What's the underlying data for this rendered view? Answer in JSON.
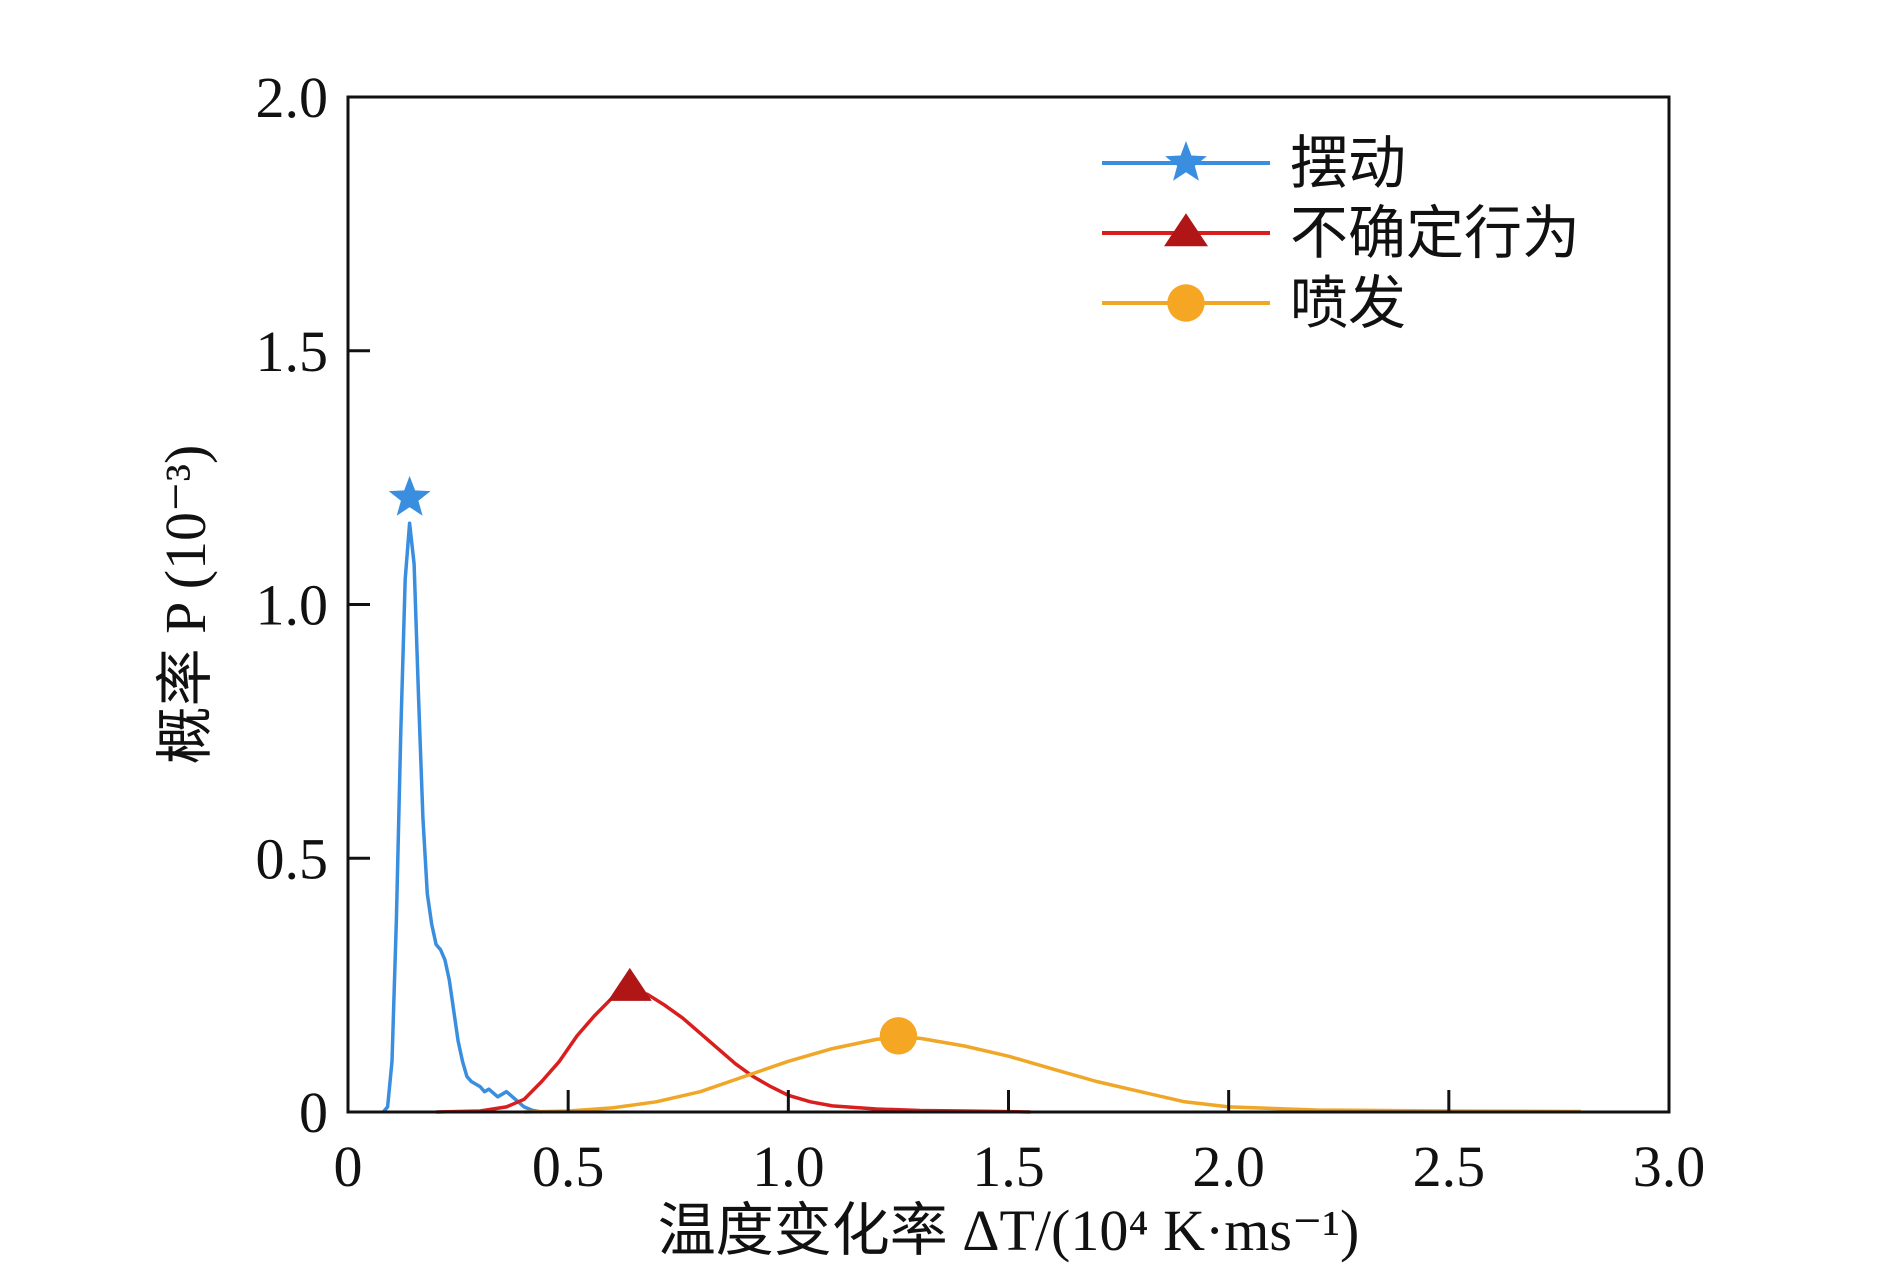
{
  "chart_data": {
    "type": "line",
    "title": "",
    "xlabel": "温度变化率 ΔT/(10⁴ K·ms⁻¹)",
    "ylabel": "概率 P (10⁻³)",
    "xlim": [
      0,
      3.0
    ],
    "ylim": [
      0,
      2.0
    ],
    "xticks": [
      "0",
      "0.5",
      "1.0",
      "1.5",
      "2.0",
      "2.5",
      "3.0"
    ],
    "yticks": [
      "0",
      "0.5",
      "1.0",
      "1.5",
      "2.0"
    ],
    "legend_position": "top-right",
    "series": [
      {
        "name": "摆动",
        "color": "#3a8ee0",
        "marker": "star",
        "peak": [
          0.14,
          1.21
        ],
        "points": [
          [
            0.08,
            0
          ],
          [
            0.09,
            0.01
          ],
          [
            0.1,
            0.1
          ],
          [
            0.11,
            0.38
          ],
          [
            0.12,
            0.75
          ],
          [
            0.13,
            1.05
          ],
          [
            0.14,
            1.16
          ],
          [
            0.15,
            1.08
          ],
          [
            0.16,
            0.82
          ],
          [
            0.17,
            0.58
          ],
          [
            0.18,
            0.43
          ],
          [
            0.19,
            0.37
          ],
          [
            0.2,
            0.33
          ],
          [
            0.21,
            0.32
          ],
          [
            0.22,
            0.3
          ],
          [
            0.23,
            0.26
          ],
          [
            0.24,
            0.2
          ],
          [
            0.25,
            0.14
          ],
          [
            0.26,
            0.1
          ],
          [
            0.27,
            0.07
          ],
          [
            0.28,
            0.06
          ],
          [
            0.3,
            0.05
          ],
          [
            0.31,
            0.04
          ],
          [
            0.32,
            0.045
          ],
          [
            0.34,
            0.03
          ],
          [
            0.36,
            0.04
          ],
          [
            0.38,
            0.025
          ],
          [
            0.4,
            0.01
          ],
          [
            0.42,
            0.003
          ],
          [
            0.44,
            0
          ]
        ]
      },
      {
        "name": "不确定行为",
        "color": "#d91e1e",
        "marker": "triangle",
        "peak": [
          0.64,
          0.245
        ],
        "points": [
          [
            0.2,
            0
          ],
          [
            0.3,
            0.002
          ],
          [
            0.36,
            0.01
          ],
          [
            0.4,
            0.025
          ],
          [
            0.44,
            0.06
          ],
          [
            0.48,
            0.1
          ],
          [
            0.52,
            0.15
          ],
          [
            0.56,
            0.19
          ],
          [
            0.6,
            0.225
          ],
          [
            0.64,
            0.24
          ],
          [
            0.68,
            0.232
          ],
          [
            0.72,
            0.21
          ],
          [
            0.76,
            0.185
          ],
          [
            0.8,
            0.155
          ],
          [
            0.84,
            0.125
          ],
          [
            0.88,
            0.095
          ],
          [
            0.92,
            0.07
          ],
          [
            0.96,
            0.05
          ],
          [
            1.0,
            0.033
          ],
          [
            1.05,
            0.02
          ],
          [
            1.1,
            0.012
          ],
          [
            1.2,
            0.006
          ],
          [
            1.3,
            0.003
          ],
          [
            1.4,
            0.002
          ],
          [
            1.55,
            0
          ]
        ]
      },
      {
        "name": "喷发",
        "color": "#f0a626",
        "marker": "circle",
        "peak": [
          1.25,
          0.15
        ],
        "points": [
          [
            0.4,
            0
          ],
          [
            0.5,
            0.002
          ],
          [
            0.6,
            0.008
          ],
          [
            0.7,
            0.02
          ],
          [
            0.8,
            0.04
          ],
          [
            0.9,
            0.07
          ],
          [
            1.0,
            0.1
          ],
          [
            1.1,
            0.125
          ],
          [
            1.2,
            0.143
          ],
          [
            1.25,
            0.148
          ],
          [
            1.3,
            0.145
          ],
          [
            1.4,
            0.13
          ],
          [
            1.5,
            0.11
          ],
          [
            1.6,
            0.085
          ],
          [
            1.7,
            0.06
          ],
          [
            1.8,
            0.04
          ],
          [
            1.9,
            0.02
          ],
          [
            2.0,
            0.01
          ],
          [
            2.2,
            0.004
          ],
          [
            2.5,
            0.002
          ],
          [
            2.8,
            0.001
          ]
        ]
      }
    ]
  }
}
